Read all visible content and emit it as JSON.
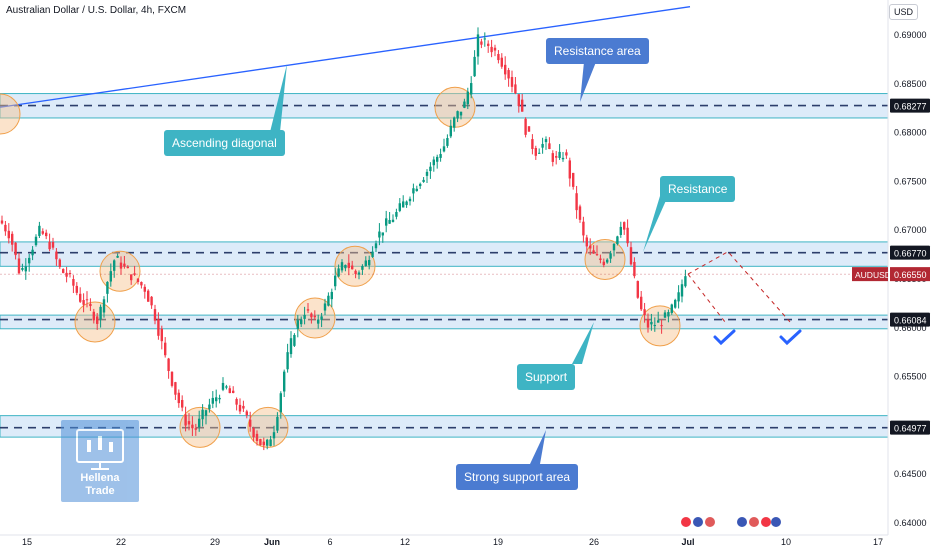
{
  "header": {
    "title": "Australian Dollar / U.S. Dollar, 4h, FXCM",
    "currency": "USD"
  },
  "chart_data": {
    "type": "candlestick",
    "symbol": "AUDUSD",
    "last_price": "0.66550",
    "y_ticks": [
      "0.69000",
      "0.68500",
      "0.68000",
      "0.67500",
      "0.67000",
      "0.66500",
      "0.66000",
      "0.65500",
      "0.65000",
      "0.64500",
      "0.64000"
    ],
    "x_ticks": [
      "15",
      "22",
      "29",
      "Jun",
      "6",
      "12",
      "19",
      "26",
      "Jul",
      "10",
      "17"
    ],
    "levels": [
      {
        "label": "0.68277",
        "value": 0.68277,
        "zone": [
          0.6815,
          0.684
        ]
      },
      {
        "label": "0.66770",
        "value": 0.6677,
        "zone": [
          0.6663,
          0.6688
        ]
      },
      {
        "label": "0.66084",
        "value": 0.66084,
        "zone": [
          0.6599,
          0.6613
        ]
      },
      {
        "label": "0.64977",
        "value": 0.64977,
        "zone": [
          0.6488,
          0.651
        ]
      }
    ],
    "price_path": [
      [
        0,
        0.671
      ],
      [
        10,
        0.6695
      ],
      [
        20,
        0.6655
      ],
      [
        30,
        0.6678
      ],
      [
        40,
        0.67
      ],
      [
        50,
        0.6685
      ],
      [
        60,
        0.666
      ],
      [
        70,
        0.665
      ],
      [
        80,
        0.663
      ],
      [
        90,
        0.662
      ],
      [
        98,
        0.6606
      ],
      [
        105,
        0.664
      ],
      [
        115,
        0.6672
      ],
      [
        125,
        0.666
      ],
      [
        135,
        0.665
      ],
      [
        145,
        0.664
      ],
      [
        155,
        0.6612
      ],
      [
        165,
        0.657
      ],
      [
        175,
        0.6535
      ],
      [
        185,
        0.6505
      ],
      [
        195,
        0.6495
      ],
      [
        205,
        0.6515
      ],
      [
        215,
        0.6528
      ],
      [
        225,
        0.654
      ],
      [
        235,
        0.6525
      ],
      [
        245,
        0.651
      ],
      [
        255,
        0.649
      ],
      [
        265,
        0.6475
      ],
      [
        275,
        0.65
      ],
      [
        285,
        0.656
      ],
      [
        295,
        0.66
      ],
      [
        305,
        0.6618
      ],
      [
        315,
        0.6605
      ],
      [
        325,
        0.6622
      ],
      [
        335,
        0.665
      ],
      [
        345,
        0.6668
      ],
      [
        355,
        0.6655
      ],
      [
        365,
        0.6665
      ],
      [
        375,
        0.669
      ],
      [
        385,
        0.6705
      ],
      [
        395,
        0.6715
      ],
      [
        405,
        0.673
      ],
      [
        415,
        0.6745
      ],
      [
        425,
        0.6758
      ],
      [
        435,
        0.6772
      ],
      [
        445,
        0.6788
      ],
      [
        455,
        0.6815
      ],
      [
        465,
        0.683
      ],
      [
        472,
        0.686
      ],
      [
        478,
        0.6895
      ],
      [
        488,
        0.689
      ],
      [
        498,
        0.688
      ],
      [
        508,
        0.686
      ],
      [
        518,
        0.6835
      ],
      [
        525,
        0.6805
      ],
      [
        535,
        0.678
      ],
      [
        545,
        0.679
      ],
      [
        555,
        0.677
      ],
      [
        565,
        0.678
      ],
      [
        575,
        0.673
      ],
      [
        585,
        0.6685
      ],
      [
        595,
        0.6672
      ],
      [
        605,
        0.6668
      ],
      [
        615,
        0.669
      ],
      [
        622,
        0.6712
      ],
      [
        630,
        0.667
      ],
      [
        640,
        0.662
      ],
      [
        648,
        0.6602
      ],
      [
        658,
        0.6605
      ],
      [
        668,
        0.6612
      ],
      [
        678,
        0.663
      ],
      [
        686,
        0.666
      ]
    ],
    "projection_1": [
      [
        688,
        0.6655
      ],
      [
        725,
        0.6606
      ]
    ],
    "projection_2": [
      [
        688,
        0.6655
      ],
      [
        728,
        0.6678
      ],
      [
        790,
        0.6606
      ]
    ],
    "ascending_line": [
      [
        0,
        0.6826
      ],
      [
        690,
        0.6929
      ]
    ],
    "circles": [
      [
        0,
        0.6819
      ],
      [
        455,
        0.6826
      ],
      [
        120,
        0.6658
      ],
      [
        95,
        0.6606
      ],
      [
        355,
        0.6663
      ],
      [
        315,
        0.661
      ],
      [
        605,
        0.667
      ],
      [
        660,
        0.6602
      ],
      [
        200,
        0.6498
      ],
      [
        268,
        0.6498
      ]
    ]
  },
  "annotations": {
    "resistance_area": "Resistance area",
    "ascending_diagonal": "Ascending diagonal",
    "resistance": "Resistance",
    "support": "Support",
    "strong_support_area": "Strong support area"
  },
  "logo": {
    "line1": "Hellena",
    "line2": "Trade"
  },
  "colors": {
    "zone_fill": "#cfe3f7",
    "zone_border": "#3eb4c4",
    "level_line": "#2c3e6b",
    "up": "#089981",
    "down": "#f23645",
    "price_tag": "#b22833",
    "blue_callout": "#4b7bd1",
    "teal_callout": "#3eb4c4"
  }
}
